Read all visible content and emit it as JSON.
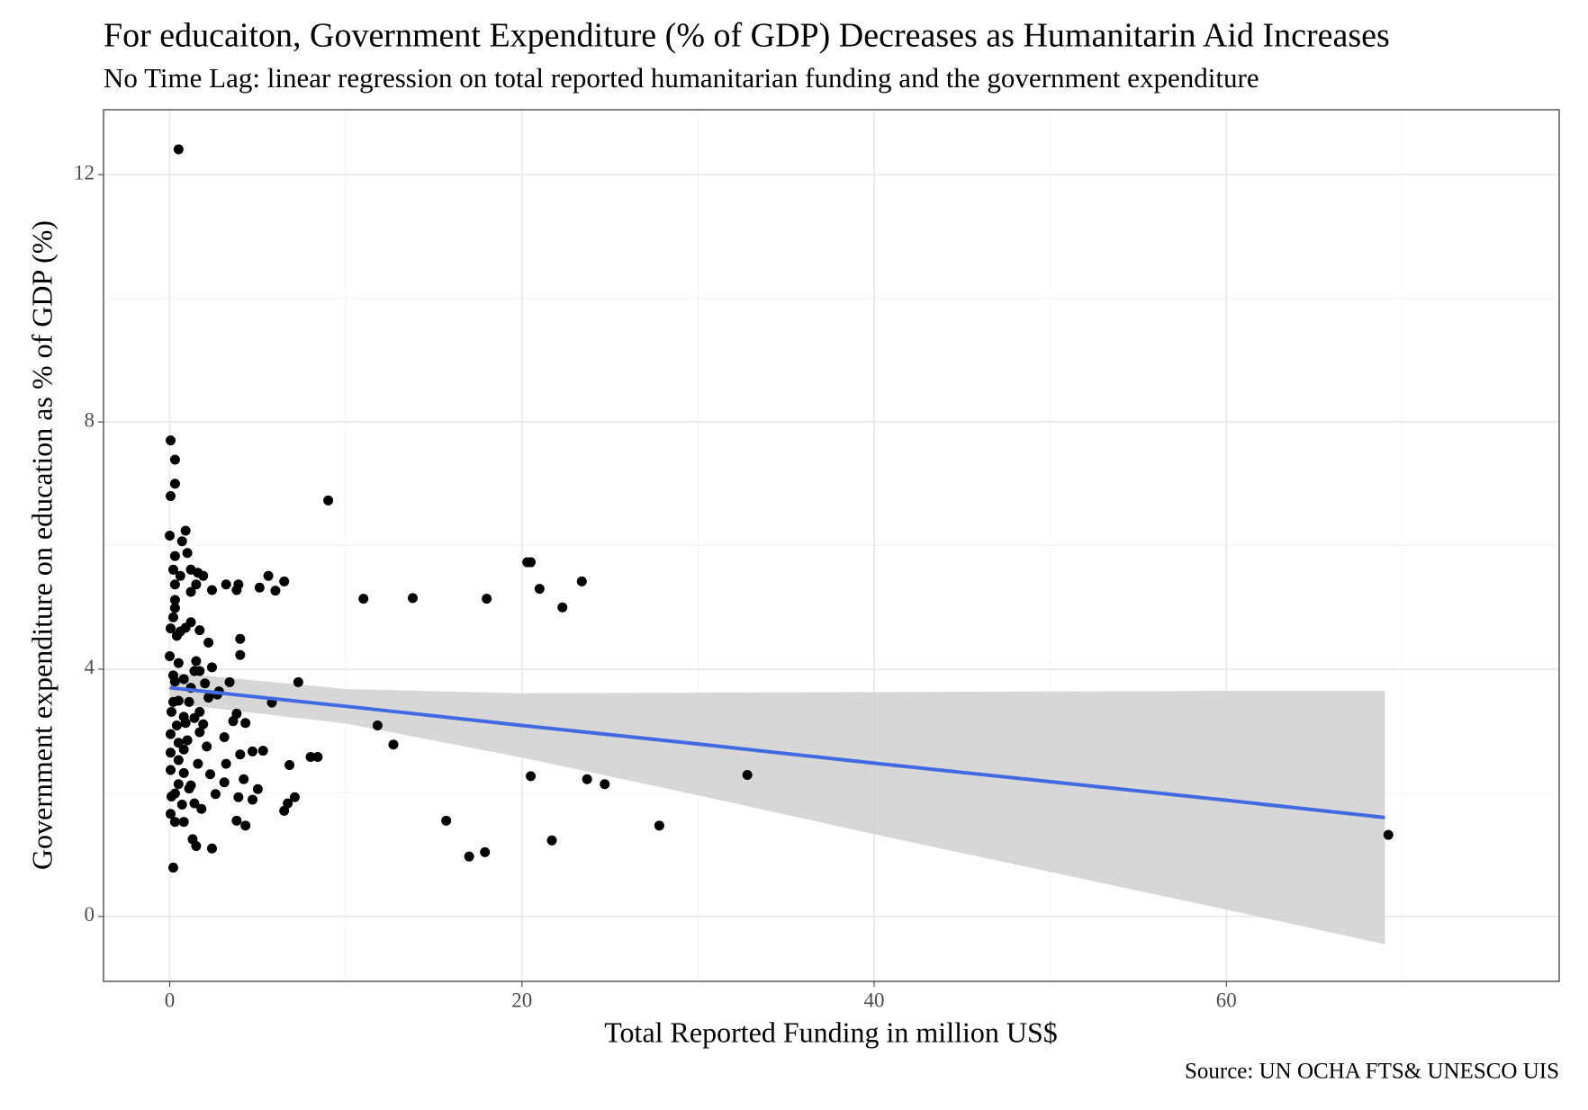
{
  "chart_data": {
    "type": "scatter",
    "title": "For educaiton, Government Expenditure (% of GDP) Decreases as Humanitarin Aid Increases",
    "subtitle": "No Time Lag: linear regression on total reported humanitarian funding and the government expenditure",
    "x_label": "Total Reported Funding in million US$",
    "y_label": "Government expenditure on education as % of GDP (%)",
    "caption": "Source: UN OCHA FTS& UNESCO UIS",
    "xlim": [
      -3.76,
      78.9
    ],
    "ylim": [
      -1.05,
      13.05
    ],
    "xticks": [
      0,
      20,
      40,
      60
    ],
    "yticks": [
      0,
      4,
      8,
      12
    ],
    "xminorticks": [
      10,
      30,
      50,
      70
    ],
    "yminorticks": [
      2,
      6,
      10
    ],
    "grid": true,
    "color": "#000000",
    "x": [
      0.5,
      0.05,
      0.3,
      0.3,
      0.05,
      9.0,
      0,
      0.9,
      0.7,
      0.3,
      1.0,
      20.3,
      20.5,
      23.4,
      21.0,
      22.3,
      18.0,
      13.8,
      11.0,
      5.6,
      6.5,
      6.0,
      5.1,
      3.9,
      3.8,
      3.2,
      2.4,
      1.6,
      1.9,
      1.2,
      1.5,
      0.6,
      0.3,
      0.2,
      0.3,
      0.3,
      0.2,
      0.05,
      0.4,
      0.9,
      1.2,
      1.7,
      2.2,
      4.0,
      4.0,
      0.5,
      1.5,
      1.7,
      2.4,
      0.2,
      0.8,
      1.2,
      3.4,
      7.3,
      2.2,
      2.7,
      5.8,
      1.1,
      0.5,
      3.8,
      4.3,
      3.6,
      11.8,
      1.4,
      0.4,
      0.05,
      3.1,
      1.7,
      12.7,
      0.8,
      2.1,
      4.0,
      4.7,
      5.3,
      8.0,
      8.4,
      6.8,
      3.2,
      1.6,
      0.5,
      0.05,
      0.8,
      2.3,
      20.5,
      23.7,
      24.7,
      32.8,
      4.2,
      3.1,
      1.2,
      0.5,
      5.0,
      2.6,
      7.1,
      3.9,
      4.7,
      0.1,
      0.7,
      1.8,
      6.7,
      6.5,
      0.05,
      0.3,
      0.8,
      3.8,
      4.3,
      15.7,
      27.8,
      1.3,
      1.5,
      2.4,
      21.7,
      17.9,
      17.0,
      0.2,
      69.2,
      0,
      0.2,
      0.1,
      0.5,
      0.05,
      1.0,
      0.9,
      1.9,
      1.4,
      1.1,
      0.3,
      0.8,
      0.6,
      1.2,
      1.4,
      2.0,
      2.8,
      1.7,
      0.3
    ],
    "values": [
      12.41,
      7.7,
      7.39,
      7.0,
      6.8,
      6.73,
      6.16,
      6.24,
      6.07,
      5.83,
      5.88,
      5.73,
      5.73,
      5.42,
      5.3,
      5.0,
      5.14,
      5.15,
      5.14,
      5.51,
      5.42,
      5.27,
      5.32,
      5.37,
      5.28,
      5.37,
      5.28,
      5.56,
      5.51,
      5.61,
      5.37,
      5.51,
      5.37,
      5.61,
      5.12,
      4.99,
      4.84,
      4.66,
      4.54,
      4.67,
      4.76,
      4.63,
      4.43,
      4.49,
      4.23,
      4.1,
      4.13,
      3.97,
      4.03,
      3.9,
      3.84,
      3.7,
      3.79,
      3.79,
      3.54,
      3.59,
      3.46,
      3.47,
      3.49,
      3.28,
      3.13,
      3.16,
      3.09,
      3.21,
      3.09,
      2.95,
      2.9,
      2.98,
      2.78,
      2.7,
      2.75,
      2.62,
      2.67,
      2.68,
      2.58,
      2.58,
      2.45,
      2.47,
      2.47,
      2.53,
      2.37,
      2.32,
      2.3,
      2.27,
      2.22,
      2.14,
      2.29,
      2.22,
      2.17,
      2.12,
      2.14,
      2.06,
      1.98,
      1.93,
      1.93,
      1.89,
      1.94,
      1.81,
      1.74,
      1.83,
      1.71,
      1.66,
      1.53,
      1.53,
      1.55,
      1.47,
      1.55,
      1.47,
      1.25,
      1.14,
      1.1,
      1.23,
      1.04,
      0.97,
      0.79,
      1.32,
      4.21,
      3.47,
      3.31,
      2.81,
      2.65,
      2.85,
      3.13,
      3.11,
      1.83,
      2.07,
      1.99,
      3.23,
      4.61,
      5.25,
      3.97,
      3.77,
      3.64,
      3.31,
      3.8
    ],
    "fit": {
      "color": "#4169e1",
      "band_color": "#d3d3d3",
      "x": [
        0,
        10,
        20,
        30,
        40,
        50,
        60,
        69
      ],
      "values": [
        3.7,
        3.4,
        3.09,
        2.79,
        2.48,
        2.18,
        1.88,
        1.6
      ],
      "lower": [
        3.45,
        3.12,
        2.57,
        1.96,
        1.33,
        0.72,
        0.11,
        -0.45
      ],
      "upper": [
        3.95,
        3.68,
        3.61,
        3.62,
        3.63,
        3.64,
        3.65,
        3.65
      ]
    }
  }
}
